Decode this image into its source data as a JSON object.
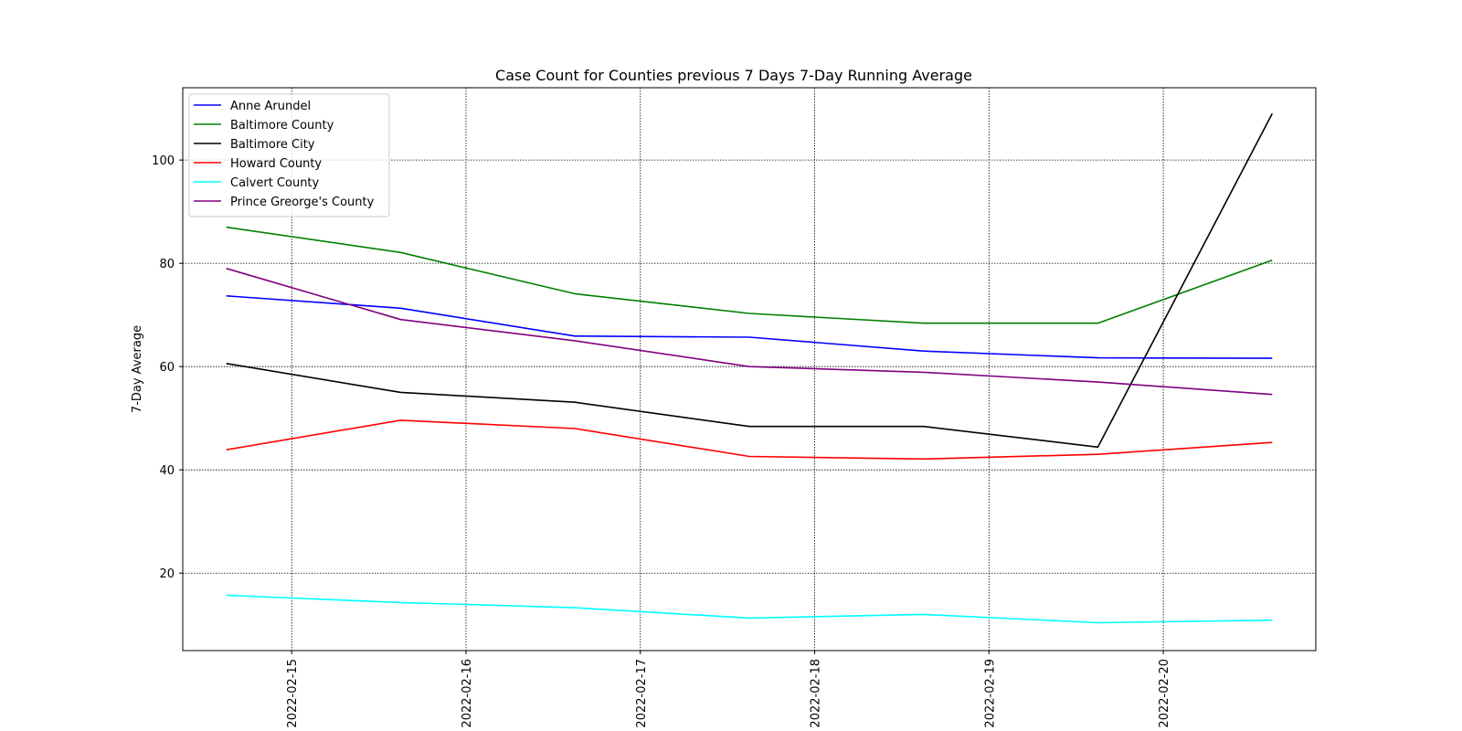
{
  "chart_data": {
    "type": "line",
    "title": "Case Count for Counties previous 7 Days 7-Day Running Average",
    "xlabel": "",
    "ylabel": "7-Day Average",
    "x": [
      "2022-02-14T15:00",
      "2022-02-15T15:00",
      "2022-02-16T15:00",
      "2022-02-17T15:00",
      "2022-02-18T15:00",
      "2022-02-19T15:00",
      "2022-02-20T15:00"
    ],
    "xlim": [
      "2022-02-14T09:00",
      "2022-02-20T21:00"
    ],
    "ylim": [
      5,
      114
    ],
    "xticks": [
      "2022-02-15",
      "2022-02-16",
      "2022-02-17",
      "2022-02-18",
      "2022-02-19",
      "2022-02-20"
    ],
    "yticks": [
      20,
      40,
      60,
      80,
      100
    ],
    "grid": true,
    "legend_position": "top-left",
    "series": [
      {
        "name": "Anne Arundel",
        "color": "#0000ff",
        "values": [
          73.7,
          71.3,
          65.9,
          65.7,
          63.0,
          61.7,
          61.6
        ]
      },
      {
        "name": "Baltimore County",
        "color": "#008000",
        "values": [
          87.0,
          82.1,
          74.1,
          70.3,
          68.4,
          68.4,
          80.6
        ]
      },
      {
        "name": "Baltimore City",
        "color": "#000000",
        "values": [
          60.6,
          55.0,
          53.1,
          48.4,
          48.4,
          44.4,
          109.0
        ]
      },
      {
        "name": "Howard County",
        "color": "#ff0000",
        "values": [
          43.9,
          49.6,
          48.0,
          42.6,
          42.1,
          43.0,
          45.3
        ]
      },
      {
        "name": "Calvert County",
        "color": "#00ffff",
        "values": [
          15.7,
          14.3,
          13.3,
          11.3,
          12.0,
          10.4,
          10.9
        ]
      },
      {
        "name": "Prince Greorge's County",
        "color": "#800080",
        "values": [
          79.0,
          69.1,
          65.0,
          60.0,
          58.9,
          57.0,
          54.6
        ]
      }
    ]
  }
}
